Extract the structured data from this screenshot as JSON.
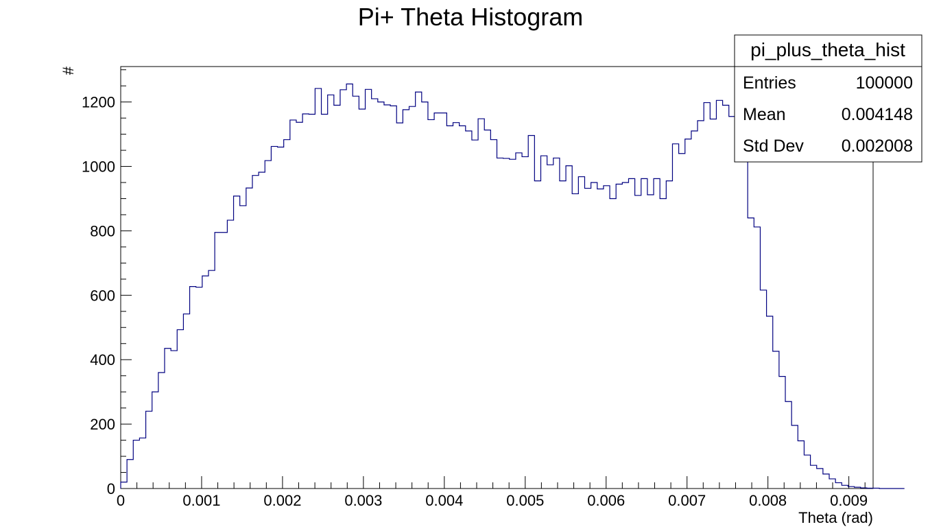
{
  "chart_data": {
    "type": "histogram",
    "title": "Pi+ Theta Histogram",
    "xlabel": "Theta (rad)",
    "ylabel": "#",
    "xlim": [
      0,
      0.0093
    ],
    "ylim": [
      0,
      1310
    ],
    "bin_width": 7.75e-05,
    "line_color": "#000080",
    "x_ticks": [
      0,
      0.001,
      0.002,
      0.003,
      0.004,
      0.005,
      0.006,
      0.007,
      0.008,
      0.009
    ],
    "x_tick_labels": [
      "0",
      "0.001",
      "0.002",
      "0.003",
      "0.004",
      "0.005",
      "0.006",
      "0.007",
      "0.008",
      "0.009"
    ],
    "y_ticks": [
      0,
      200,
      400,
      600,
      800,
      1000,
      1200
    ],
    "y_tick_labels": [
      "0",
      "200",
      "400",
      "600",
      "800",
      "1000",
      "1200"
    ],
    "values": [
      20,
      90,
      150,
      157,
      240,
      300,
      360,
      435,
      428,
      493,
      542,
      627,
      625,
      660,
      677,
      795,
      795,
      833,
      908,
      878,
      933,
      972,
      982,
      1018,
      1062,
      1060,
      1083,
      1144,
      1137,
      1163,
      1162,
      1242,
      1162,
      1222,
      1190,
      1238,
      1256,
      1218,
      1178,
      1239,
      1210,
      1200,
      1191,
      1188,
      1135,
      1176,
      1186,
      1231,
      1200,
      1145,
      1166,
      1166,
      1126,
      1136,
      1126,
      1110,
      1082,
      1148,
      1113,
      1083,
      1026,
      1025,
      1022,
      1042,
      1030,
      1096,
      955,
      1033,
      1005,
      1026,
      955,
      1002,
      915,
      968,
      932,
      950,
      930,
      940,
      900,
      945,
      950,
      962,
      910,
      962,
      912,
      962,
      900,
      955,
      1070,
      1040,
      1085,
      1110,
      1142,
      1198,
      1147,
      1205,
      1190,
      1155,
      1078,
      1035,
      840,
      812,
      616,
      535,
      426,
      348,
      270,
      196,
      148,
      104,
      72,
      62,
      45,
      30,
      18,
      10,
      6,
      4,
      2,
      1,
      1,
      0,
      0,
      0,
      0
    ],
    "stats_box": {
      "name": "pi_plus_theta_hist",
      "rows": [
        {
          "label": "Entries",
          "value": "100000"
        },
        {
          "label": "Mean",
          "value": "0.004148"
        },
        {
          "label": "Std Dev",
          "value": "0.002008"
        }
      ]
    }
  }
}
